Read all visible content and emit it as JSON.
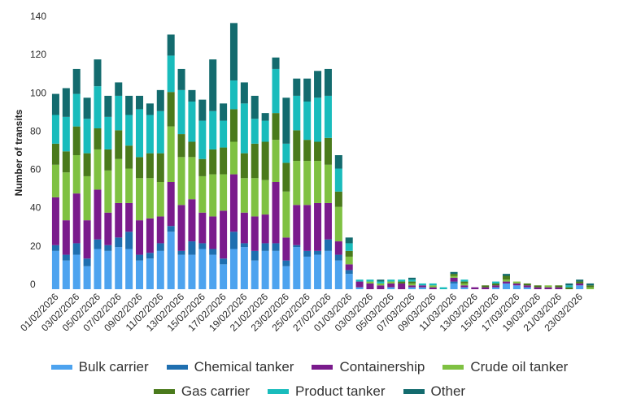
{
  "chart_data": {
    "type": "bar",
    "stacked": true,
    "ylabel": "Number of transits",
    "ylim": [
      0,
      140
    ],
    "yticks": [
      0,
      20,
      40,
      60,
      80,
      100,
      120,
      140
    ],
    "categories": [
      "01/02/2026",
      "02/02/2026",
      "03/02/2026",
      "04/02/2026",
      "05/02/2026",
      "06/02/2026",
      "07/02/2026",
      "08/02/2026",
      "09/02/2026",
      "10/02/2026",
      "11/02/2026",
      "12/02/2026",
      "13/02/2026",
      "14/02/2026",
      "15/02/2026",
      "16/02/2026",
      "17/02/2026",
      "18/02/2026",
      "19/02/2026",
      "20/02/2026",
      "21/02/2026",
      "22/02/2026",
      "23/02/2026",
      "24/02/2026",
      "25/02/2026",
      "26/02/2026",
      "27/02/2026",
      "28/02/2026",
      "01/03/2026",
      "02/03/2026",
      "03/03/2026",
      "04/03/2026",
      "05/03/2026",
      "06/03/2026",
      "07/03/2026",
      "08/03/2026",
      "09/03/2026",
      "10/03/2026",
      "11/03/2026",
      "12/03/2026",
      "13/03/2026",
      "14/03/2026",
      "15/03/2026",
      "16/03/2026",
      "17/03/2026",
      "18/03/2026",
      "19/03/2026",
      "20/03/2026",
      "21/03/2026",
      "22/03/2026",
      "23/03/2026",
      "24/03/2026"
    ],
    "xtick_labels_shown": [
      "01/02/2026",
      "03/02/2026",
      "05/02/2026",
      "07/02/2026",
      "09/02/2026",
      "11/02/2026",
      "13/02/2026",
      "15/02/2026",
      "17/02/2026",
      "19/02/2026",
      "21/02/2026",
      "23/02/2026",
      "25/02/2026",
      "27/02/2026",
      "01/03/2026",
      "03/03/2026",
      "05/03/2026",
      "07/03/2026",
      "09/03/2026",
      "11/03/2026",
      "13/03/2026",
      "15/03/2026",
      "17/03/2026",
      "19/03/2026",
      "21/03/2026",
      "23/03/2026"
    ],
    "series": [
      {
        "name": "Bulk carrier",
        "color": "#4da3ef",
        "values": [
          20,
          15,
          18,
          12,
          21,
          20,
          22,
          21,
          15,
          16,
          20,
          30,
          18,
          18,
          21,
          18,
          13,
          21,
          22,
          15,
          20,
          20,
          12,
          22,
          17,
          18,
          20,
          15,
          8,
          1,
          0,
          0,
          1,
          0,
          1,
          1,
          0,
          0,
          3,
          1,
          0,
          0,
          1,
          3,
          2,
          1,
          0,
          0,
          0,
          0,
          2,
          0
        ]
      },
      {
        "name": "Chemical tanker",
        "color": "#1f6fb0",
        "values": [
          3,
          3,
          6,
          4,
          5,
          3,
          5,
          9,
          3,
          3,
          4,
          3,
          2,
          7,
          3,
          3,
          3,
          9,
          2,
          5,
          4,
          4,
          3,
          1,
          3,
          2,
          6,
          3,
          2,
          0,
          0,
          0,
          0,
          0,
          0,
          0,
          0,
          0,
          1,
          0,
          0,
          0,
          0,
          0,
          0,
          0,
          0,
          0,
          0,
          0,
          0,
          0
        ]
      },
      {
        "name": "Containership",
        "color": "#7a1b8c",
        "values": [
          25,
          18,
          26,
          20,
          26,
          17,
          18,
          15,
          18,
          18,
          14,
          23,
          24,
          22,
          16,
          17,
          25,
          30,
          16,
          18,
          15,
          32,
          12,
          21,
          24,
          25,
          19,
          7,
          3,
          3,
          3,
          2,
          2,
          3,
          1,
          1,
          1,
          0,
          2,
          1,
          1,
          1,
          1,
          1,
          1,
          1,
          1,
          1,
          1,
          0,
          1,
          0
        ]
      },
      {
        "name": "Crude oil tanker",
        "color": "#7fc142",
        "values": [
          17,
          25,
          20,
          23,
          21,
          22,
          23,
          18,
          22,
          21,
          18,
          29,
          25,
          22,
          19,
          22,
          19,
          17,
          18,
          20,
          18,
          22,
          24,
          23,
          23,
          22,
          20,
          18,
          4,
          0,
          1,
          1,
          1,
          0,
          1,
          0,
          1,
          0,
          1,
          1,
          0,
          0,
          0,
          1,
          1,
          0,
          0,
          1,
          0,
          0,
          0,
          1
        ]
      },
      {
        "name": "Gas carrier",
        "color": "#4a7a1c",
        "values": [
          11,
          11,
          15,
          12,
          11,
          11,
          15,
          12,
          11,
          13,
          15,
          18,
          12,
          8,
          9,
          13,
          14,
          17,
          13,
          18,
          20,
          14,
          15,
          16,
          11,
          10,
          14,
          8,
          3,
          0,
          0,
          0,
          0,
          1,
          1,
          0,
          0,
          0,
          1,
          1,
          0,
          1,
          1,
          2,
          0,
          1,
          1,
          0,
          1,
          1,
          1,
          1
        ]
      },
      {
        "name": "Product tanker",
        "color": "#19bcbc",
        "values": [
          15,
          18,
          17,
          18,
          22,
          17,
          18,
          16,
          25,
          20,
          22,
          19,
          23,
          21,
          20,
          20,
          14,
          15,
          26,
          13,
          11,
          23,
          10,
          18,
          20,
          23,
          22,
          12,
          4,
          1,
          1,
          1,
          1,
          1,
          1,
          1,
          1,
          1,
          0,
          1,
          0,
          0,
          1,
          0,
          0,
          0,
          0,
          0,
          0,
          1,
          0,
          0
        ]
      },
      {
        "name": "Other",
        "color": "#136b6e",
        "values": [
          11,
          15,
          13,
          11,
          14,
          11,
          7,
          10,
          7,
          6,
          11,
          11,
          11,
          6,
          11,
          27,
          9,
          30,
          11,
          12,
          4,
          6,
          24,
          9,
          12,
          14,
          14,
          7,
          3,
          0,
          0,
          1,
          0,
          0,
          1,
          0,
          0,
          0,
          1,
          0,
          0,
          0,
          0,
          1,
          0,
          0,
          0,
          0,
          0,
          1,
          1,
          1
        ]
      }
    ],
    "legend": "bottom",
    "grid": false
  }
}
